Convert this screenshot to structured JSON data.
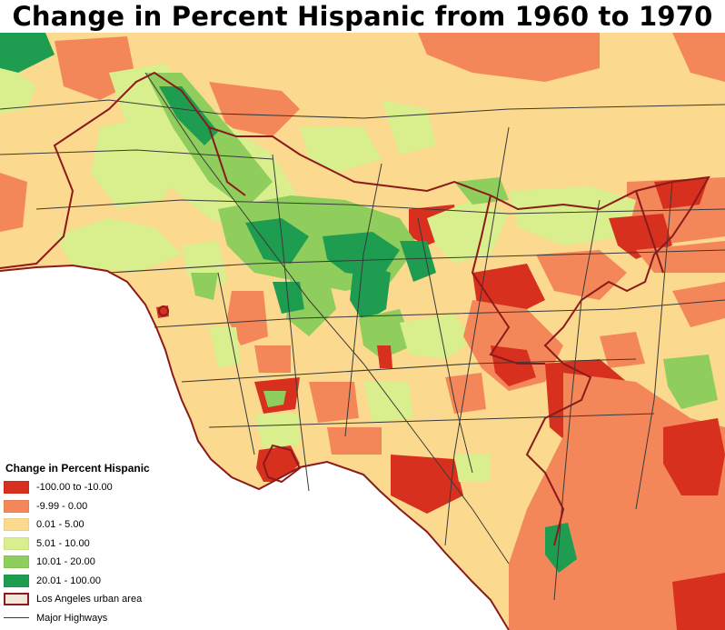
{
  "title": "Change in Percent Hispanic from 1960 to 1970",
  "colors": {
    "ocean": "#ffffff",
    "class_neg_large": "#d7301f",
    "class_neg_small": "#f4875a",
    "class_low": "#fbd98e",
    "class_mid": "#d9ee8c",
    "class_high": "#8fce5c",
    "class_very_high": "#1e9c50",
    "urban_outline": "#8b1a1a",
    "highway": "#3a3a3a"
  },
  "legend": {
    "title": "Change in Percent Hispanic",
    "items": [
      {
        "label": "-100.00 to -10.00",
        "color": "#d7301f",
        "kind": "fill"
      },
      {
        "label": "-9.99 - 0.00",
        "color": "#f4875a",
        "kind": "fill"
      },
      {
        "label": "0.01 - 5.00",
        "color": "#fbd98e",
        "kind": "fill"
      },
      {
        "label": "5.01 - 10.00",
        "color": "#d9ee8c",
        "kind": "fill"
      },
      {
        "label": "10.01 - 20.00",
        "color": "#8fce5c",
        "kind": "fill"
      },
      {
        "label": "20.01 - 100.00",
        "color": "#1e9c50",
        "kind": "fill"
      },
      {
        "label": "Los Angeles urban area",
        "color": "#f0e6da",
        "kind": "outline"
      },
      {
        "label": "Major Highways",
        "color": "#3a3a3a",
        "kind": "line"
      }
    ]
  }
}
